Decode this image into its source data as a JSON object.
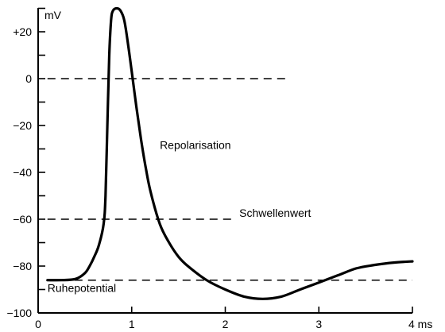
{
  "chart_data": {
    "type": "line",
    "title": "",
    "xlabel": "",
    "ylabel": "",
    "y_unit": "mV",
    "x_unit": "ms",
    "xlim": [
      0,
      4
    ],
    "ylim": [
      -100,
      30
    ],
    "x_ticks": [
      0,
      1,
      2,
      3,
      4
    ],
    "x_tick_labels": [
      "0",
      "1",
      "2",
      "3",
      "4 ms"
    ],
    "y_ticks": [
      20,
      0,
      -20,
      -40,
      -60,
      -80,
      -100
    ],
    "y_tick_labels": [
      "+20",
      "0",
      "−20",
      "−40",
      "−60",
      "−80",
      "−100"
    ],
    "y_minor_ticks": [
      30,
      10,
      -10,
      -30,
      -50,
      -70,
      -90
    ],
    "grid": false,
    "series": [
      {
        "x": [
          0.1,
          0.25,
          0.4,
          0.5,
          0.55,
          0.6,
          0.65,
          0.7,
          0.72,
          0.74,
          0.76,
          0.78,
          0.8,
          0.84,
          0.88,
          0.92,
          0.96,
          1.0,
          1.05,
          1.1,
          1.15,
          1.2,
          1.3,
          1.4,
          1.5,
          1.6,
          1.8,
          2.0,
          2.2,
          2.4,
          2.6,
          2.8,
          3.0,
          3.2,
          3.4,
          3.6,
          3.8,
          4.0
        ],
        "y": [
          -86,
          -86,
          -85.5,
          -83,
          -80,
          -76,
          -71,
          -62,
          -50,
          -20,
          10,
          25,
          29,
          30,
          29,
          25,
          15,
          3,
          -12,
          -26,
          -38,
          -48,
          -62,
          -70,
          -76,
          -80,
          -86,
          -90,
          -93,
          -94,
          -93,
          -90,
          -87,
          -84,
          -81,
          -79.5,
          -78.5,
          -78
        ]
      }
    ],
    "reference_lines": [
      {
        "y": 0,
        "x_from": 0.1,
        "x_to": 2.65
      },
      {
        "y": -60,
        "x_from": 0.1,
        "x_to": 2.1
      },
      {
        "y": -86,
        "x_from": 0.1,
        "x_to": 4.0
      }
    ],
    "annotations": [
      {
        "text": "Repolarisation",
        "x": 1.3,
        "y": -30
      },
      {
        "text": "Schwellenwert",
        "x": 2.15,
        "y": -59
      },
      {
        "text": "Ruhepotential",
        "x": 0.1,
        "y": -91
      }
    ]
  }
}
